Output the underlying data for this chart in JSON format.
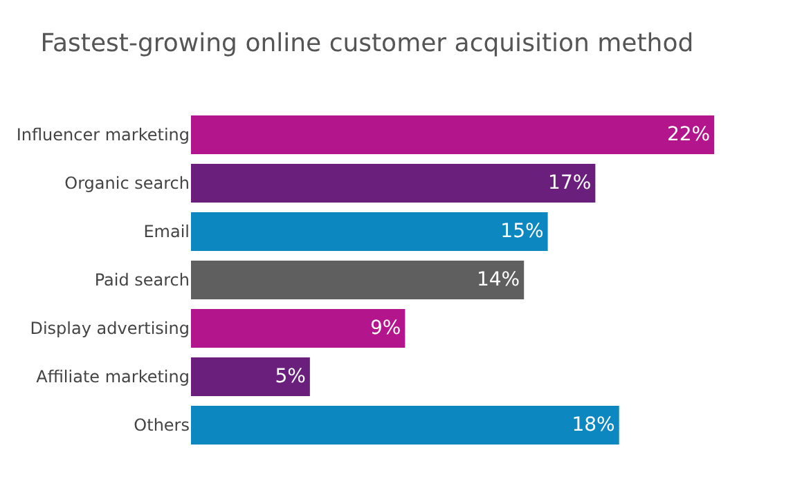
{
  "chart_data": {
    "type": "bar",
    "orientation": "horizontal",
    "title": "Fastest-growing online customer acquisition method",
    "categories": [
      "Influencer marketing",
      "Organic search",
      "Email",
      "Paid search",
      "Display advertising",
      "Affiliate marketing",
      "Others"
    ],
    "values": [
      22,
      17,
      15,
      14,
      9,
      5,
      18
    ],
    "value_labels": [
      "22%",
      "17%",
      "15%",
      "14%",
      "9%",
      "5%",
      "18%"
    ],
    "colors": [
      "#b3168c",
      "#6b1f7c",
      "#0c87bf",
      "#5f5f5f",
      "#b3168c",
      "#6b1f7c",
      "#0c87bf"
    ]
  }
}
